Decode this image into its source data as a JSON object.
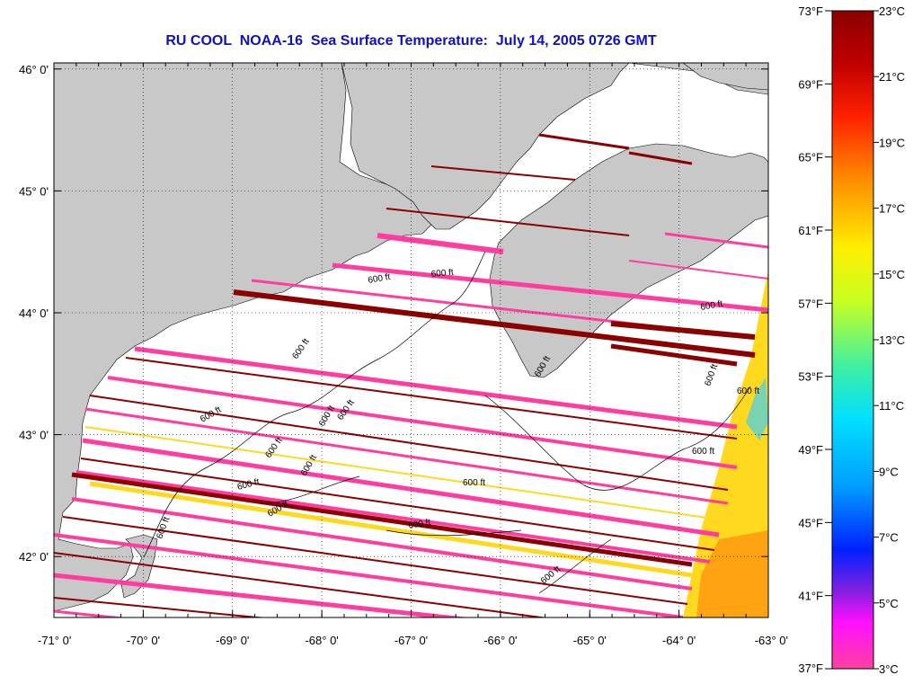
{
  "title": "RU COOL  NOAA-16  Sea Surface Temperature:  July 14, 2005 0726 GMT",
  "map": {
    "lat_labels": [
      {
        "value": 46,
        "label": "46° 0'"
      },
      {
        "value": 45,
        "label": "45° 0'"
      },
      {
        "value": 44,
        "label": "44° 0'"
      },
      {
        "value": 43,
        "label": "43° 0'"
      },
      {
        "value": 42,
        "label": "42° 0'"
      }
    ],
    "lon_labels": [
      {
        "value": -71,
        "label": "-71° 0'"
      },
      {
        "value": -70,
        "label": "-70° 0'"
      },
      {
        "value": -69,
        "label": "-69° 0'"
      },
      {
        "value": -68,
        "label": "-68° 0'"
      },
      {
        "value": -67,
        "label": "-67° 0'"
      },
      {
        "value": -66,
        "label": "-66° 0'"
      },
      {
        "value": -65,
        "label": "-65° 0'"
      },
      {
        "value": -64,
        "label": "-64° 0'"
      },
      {
        "value": -63,
        "label": "-63° 0'"
      }
    ],
    "contour_label": "600 ft",
    "land_color": "#c8c8c8",
    "missing_color": "#ffffff"
  },
  "colorbar": {
    "f_labels": [
      "73°F",
      "69°F",
      "65°F",
      "61°F",
      "57°F",
      "53°F",
      "49°F",
      "45°F",
      "41°F",
      "37°F"
    ],
    "c_labels": [
      "23°C",
      "21°C",
      "19°C",
      "17°C",
      "15°C",
      "13°C",
      "11°C",
      "9°C",
      "7°C",
      "5°C",
      "3°C"
    ],
    "colors": [
      "#8b0000",
      "#ff2000",
      "#ff9000",
      "#ffee00",
      "#c8ff20",
      "#40f0a0",
      "#00e0ff",
      "#00a0ff",
      "#0020ff",
      "#8020e0",
      "#ff10ff",
      "#ff40a0"
    ]
  }
}
